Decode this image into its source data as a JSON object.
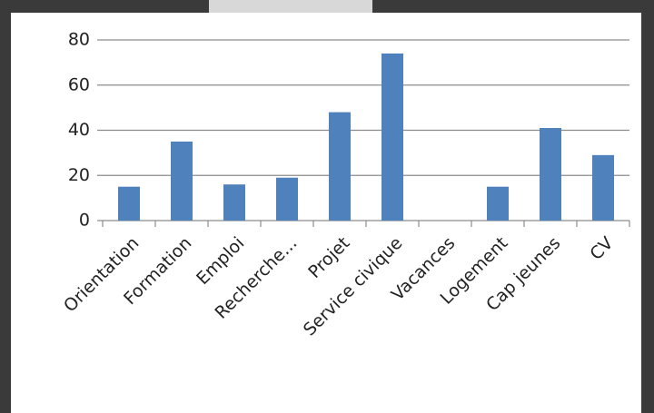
{
  "chart_data": {
    "type": "bar",
    "categories": [
      "Orientation",
      "Formation",
      "Emploi",
      "Recherche...",
      "Projet",
      "Service civique",
      "Vacances",
      "Logement",
      "Cap jeunes",
      "CV"
    ],
    "values": [
      15,
      35,
      16,
      19,
      48,
      74,
      0,
      15,
      41,
      29
    ],
    "color": "#4f81bd",
    "ylim": [
      0,
      80
    ],
    "yticks": [
      0,
      20,
      40,
      60,
      80
    ],
    "grid": true
  }
}
